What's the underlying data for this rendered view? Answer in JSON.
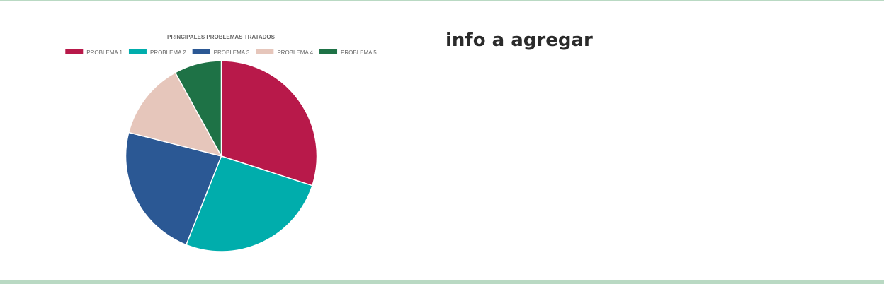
{
  "info": {
    "heading": "info a agregar"
  },
  "chart_data": {
    "type": "pie",
    "title": "PRINCIPALES PROBLEMAS TRATADOS",
    "categories": [
      "PROBLEMA 1",
      "PROBLEMA 2",
      "PROBLEMA 3",
      "PROBLEMA 4",
      "PROBLEMA 5"
    ],
    "values": [
      30,
      26,
      23,
      13,
      8
    ],
    "colors": [
      "#b8194a",
      "#00adac",
      "#2b5894",
      "#e6c6bb",
      "#1e7246"
    ],
    "legend_position": "top"
  }
}
